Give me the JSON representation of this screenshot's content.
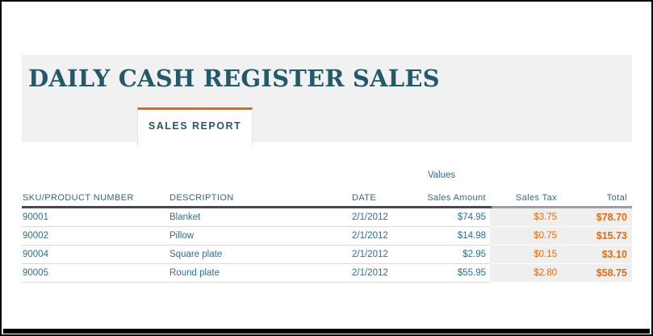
{
  "window": {
    "frame_color": "#000000",
    "background": "#ffffff"
  },
  "header": {
    "title": "DAILY CASH REGISTER SALES",
    "tab_label": "SALES REPORT",
    "banner_bg": "#F2F1F1",
    "accent_orange": "#E36C09",
    "title_color": "#235A6B"
  },
  "table": {
    "values_label": "Values",
    "columns": [
      "SKU/PRODUCT NUMBER",
      "DESCRIPTION",
      "DATE",
      "Sales Amount",
      "Sales Tax",
      "Total"
    ],
    "rows": [
      {
        "sku": "90001",
        "description": "Blanket",
        "date": "2/1/2012",
        "sales_amount": "$74.95",
        "sales_tax": "$3.75",
        "total": "$78.70"
      },
      {
        "sku": "90002",
        "description": "Pillow",
        "date": "2/1/2012",
        "sales_amount": "$14.98",
        "sales_tax": "$0.75",
        "total": "$15.73"
      },
      {
        "sku": "90004",
        "description": "Square plate",
        "date": "2/1/2012",
        "sales_amount": "$2.95",
        "sales_tax": "$0.15",
        "total": "$3.10"
      },
      {
        "sku": "90005",
        "description": "Round plate",
        "date": "2/1/2012",
        "sales_amount": "$55.95",
        "sales_tax": "$2.80",
        "total": "$58.75"
      }
    ],
    "colors": {
      "header_text": "#30698A",
      "data_text": "#2F6D92",
      "shaded_cell_bg": "#EFEFEF",
      "value_orange": "#E36C09"
    }
  }
}
